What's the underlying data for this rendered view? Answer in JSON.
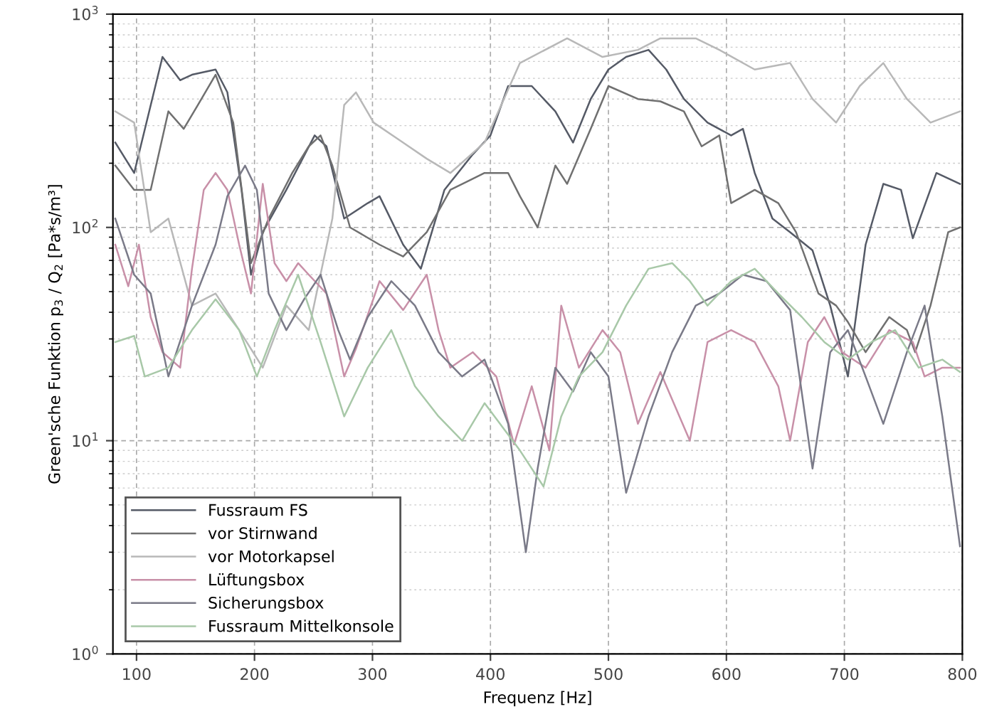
{
  "chart_data": {
    "type": "line",
    "xlabel": "Frequenz [Hz]",
    "ylabel": "Green'sche Funktion p$_{3}$ / Q$_{2}$ [Pa*s/m³]",
    "log": "y",
    "xlim": [
      80,
      800
    ],
    "xticks": [
      100,
      200,
      300,
      400,
      500,
      600,
      700,
      800
    ],
    "ylim": [
      1,
      1000
    ],
    "yticks": [
      {
        "value": 1,
        "label": "10$^{0}$"
      },
      {
        "value": 10,
        "label": "10$^{1}$"
      },
      {
        "value": 100,
        "label": "10$^{2}$"
      },
      {
        "value": 1000,
        "label": "10$^{3}$"
      }
    ],
    "grid": true,
    "legend": "bottom left",
    "line_style": "solid",
    "series": [
      {
        "name": "Fussraum FS",
        "color": "#555a66",
        "x": [
          82,
          98,
          122,
          137,
          147,
          167,
          177,
          189,
          197,
          207,
          227,
          251,
          261,
          276,
          296,
          306,
          326,
          341,
          361,
          385,
          400,
          415,
          435,
          455,
          470,
          485,
          500,
          515,
          534,
          549,
          564,
          584,
          604,
          614,
          624,
          639,
          654,
          673,
          688,
          703,
          718,
          733,
          748,
          758,
          778,
          798
        ],
        "values": [
          250,
          180,
          630,
          490,
          520,
          550,
          430,
          150,
          60,
          95,
          150,
          270,
          240,
          110,
          130,
          140,
          83,
          64,
          150,
          220,
          270,
          460,
          460,
          350,
          250,
          400,
          550,
          630,
          680,
          550,
          400,
          310,
          270,
          290,
          180,
          110,
          95,
          78,
          43,
          20,
          83,
          160,
          150,
          89,
          180,
          160
        ]
      },
      {
        "name": "vor Stirnwand",
        "color": "#707070",
        "x": [
          82,
          98,
          112,
          127,
          140,
          152,
          167,
          182,
          197,
          212,
          232,
          246,
          256,
          266,
          281,
          306,
          326,
          346,
          366,
          395,
          415,
          425,
          440,
          455,
          465,
          485,
          500,
          525,
          544,
          564,
          579,
          594,
          604,
          624,
          644,
          659,
          678,
          693,
          703,
          718,
          738,
          753,
          760,
          773,
          788,
          798
        ],
        "values": [
          195,
          150,
          150,
          350,
          290,
          375,
          520,
          310,
          68,
          110,
          180,
          240,
          270,
          195,
          100,
          83,
          73,
          95,
          150,
          180,
          180,
          140,
          100,
          195,
          160,
          290,
          460,
          400,
          390,
          350,
          240,
          270,
          130,
          150,
          130,
          95,
          49,
          43,
          36,
          26,
          38,
          33,
          26,
          43,
          95,
          100
        ]
      },
      {
        "name": "vor Motorkapsel",
        "color": "#b8b8b8",
        "x": [
          82,
          98,
          112,
          127,
          147,
          167,
          187,
          207,
          227,
          246,
          266,
          276,
          286,
          301,
          326,
          346,
          366,
          395,
          425,
          465,
          495,
          525,
          544,
          574,
          594,
          624,
          654,
          673,
          693,
          713,
          733,
          753,
          773,
          798
        ],
        "values": [
          350,
          310,
          95,
          110,
          43,
          49,
          33,
          22,
          43,
          33,
          110,
          375,
          430,
          310,
          250,
          210,
          180,
          250,
          590,
          770,
          630,
          680,
          770,
          770,
          680,
          550,
          590,
          400,
          310,
          460,
          590,
          400,
          310,
          350
        ]
      },
      {
        "name": "Lüftungsbox",
        "color": "#c890a8",
        "x": [
          82,
          93,
          102,
          112,
          122,
          137,
          147,
          157,
          167,
          177,
          187,
          197,
          207,
          217,
          227,
          237,
          246,
          261,
          276,
          286,
          306,
          326,
          346,
          356,
          366,
          385,
          405,
          420,
          435,
          450,
          460,
          475,
          495,
          510,
          525,
          544,
          569,
          584,
          604,
          624,
          644,
          654,
          669,
          683,
          698,
          718,
          738,
          758,
          768,
          783,
          798
        ],
        "values": [
          83,
          53,
          83,
          38,
          26,
          22,
          64,
          150,
          180,
          150,
          83,
          49,
          160,
          68,
          56,
          68,
          60,
          49,
          20,
          27,
          56,
          41,
          60,
          33,
          22,
          26,
          20,
          9.6,
          18,
          9.0,
          43,
          22,
          33,
          26,
          12,
          21,
          10,
          29,
          33,
          29,
          18,
          10,
          29,
          38,
          26,
          22,
          33,
          29,
          20,
          22,
          22
        ]
      },
      {
        "name": "Sicherungsbox",
        "color": "#7a7a88",
        "x": [
          82,
          98,
          112,
          127,
          147,
          167,
          177,
          192,
          202,
          212,
          227,
          242,
          256,
          271,
          281,
          296,
          316,
          336,
          356,
          376,
          395,
          415,
          430,
          440,
          455,
          470,
          485,
          500,
          515,
          534,
          554,
          574,
          594,
          614,
          634,
          654,
          673,
          688,
          703,
          718,
          733,
          753,
          768,
          783,
          798
        ],
        "values": [
          110,
          60,
          49,
          20,
          43,
          83,
          140,
          195,
          150,
          49,
          33,
          46,
          60,
          33,
          24,
          38,
          56,
          43,
          26,
          20,
          24,
          12,
          3.0,
          7.4,
          22,
          17,
          26,
          20,
          5.7,
          13,
          26,
          43,
          49,
          60,
          56,
          41,
          7.4,
          26,
          33,
          20,
          12,
          26,
          43,
          13,
          3.2
        ]
      },
      {
        "name": "Fussraum Mittelkonsole",
        "color": "#a8c8a8",
        "x": [
          82,
          98,
          107,
          127,
          147,
          167,
          187,
          202,
          217,
          237,
          256,
          276,
          296,
          316,
          336,
          356,
          376,
          395,
          425,
          445,
          460,
          475,
          495,
          515,
          534,
          554,
          569,
          584,
          604,
          624,
          644,
          664,
          683,
          703,
          723,
          743,
          763,
          783,
          798
        ],
        "values": [
          29,
          31,
          20,
          22,
          33,
          46,
          33,
          20,
          33,
          60,
          29,
          13,
          22,
          33,
          18,
          13,
          10,
          15,
          9.0,
          6.1,
          13,
          20,
          26,
          43,
          64,
          68,
          56,
          43,
          56,
          64,
          49,
          38,
          29,
          24,
          29,
          33,
          22,
          24,
          21
        ]
      }
    ]
  }
}
